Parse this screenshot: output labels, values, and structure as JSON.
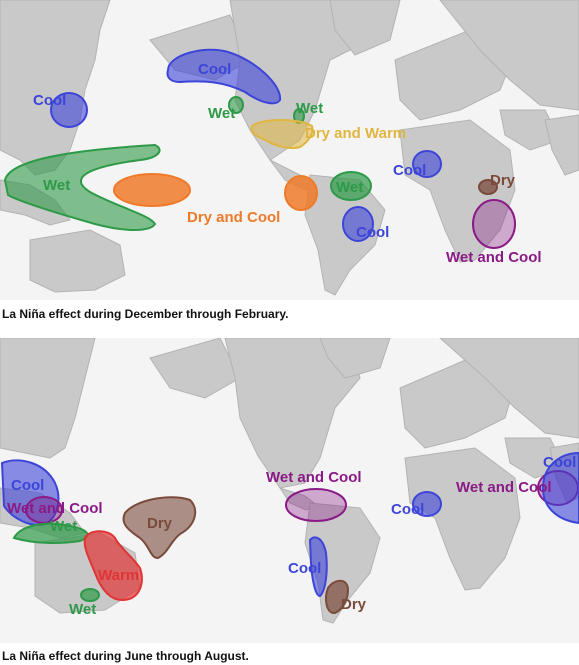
{
  "panels": [
    {
      "caption": "La Niña effect during December through February.",
      "regions": [
        {
          "label": "Cool",
          "category": "cool"
        },
        {
          "label": "Cool",
          "category": "cool"
        },
        {
          "label": "Wet",
          "category": "wet"
        },
        {
          "label": "Wet",
          "category": "wet"
        },
        {
          "label": "Dry and Warm",
          "category": "dry-warm"
        },
        {
          "label": "Wet",
          "category": "wet"
        },
        {
          "label": "Dry and Cool",
          "category": "dry-cool"
        },
        {
          "label": "Wet",
          "category": "wet"
        },
        {
          "label": "Cool",
          "category": "cool"
        },
        {
          "label": "Cool",
          "category": "cool"
        },
        {
          "label": "Dry",
          "category": "dry"
        },
        {
          "label": "Wet and Cool",
          "category": "wet-cool"
        }
      ]
    },
    {
      "caption": "La Niña effect during June through August.",
      "regions": [
        {
          "label": "Cool",
          "category": "cool"
        },
        {
          "label": "Wet and Cool",
          "category": "wet-cool"
        },
        {
          "label": "Wet",
          "category": "wet"
        },
        {
          "label": "Dry",
          "category": "dry"
        },
        {
          "label": "Warm",
          "category": "warm"
        },
        {
          "label": "Wet",
          "category": "wet"
        },
        {
          "label": "Wet and Cool",
          "category": "wet-cool"
        },
        {
          "label": "Cool",
          "category": "cool"
        },
        {
          "label": "Dry",
          "category": "dry"
        },
        {
          "label": "Cool",
          "category": "cool"
        },
        {
          "label": "Wet and Cool",
          "category": "wet-cool"
        },
        {
          "label": "Cool",
          "category": "cool"
        }
      ]
    }
  ],
  "colors": {
    "cool": "#3d45d8",
    "wet": "#2e9a48",
    "dry-warm": "#e0b640",
    "dry-cool": "#ee7a2a",
    "dry": "#7a4a3a",
    "wet-cool": "#8a1a86",
    "warm": "#e03535",
    "land": "#c9c9c9",
    "ocean": "#f4f4f4"
  }
}
